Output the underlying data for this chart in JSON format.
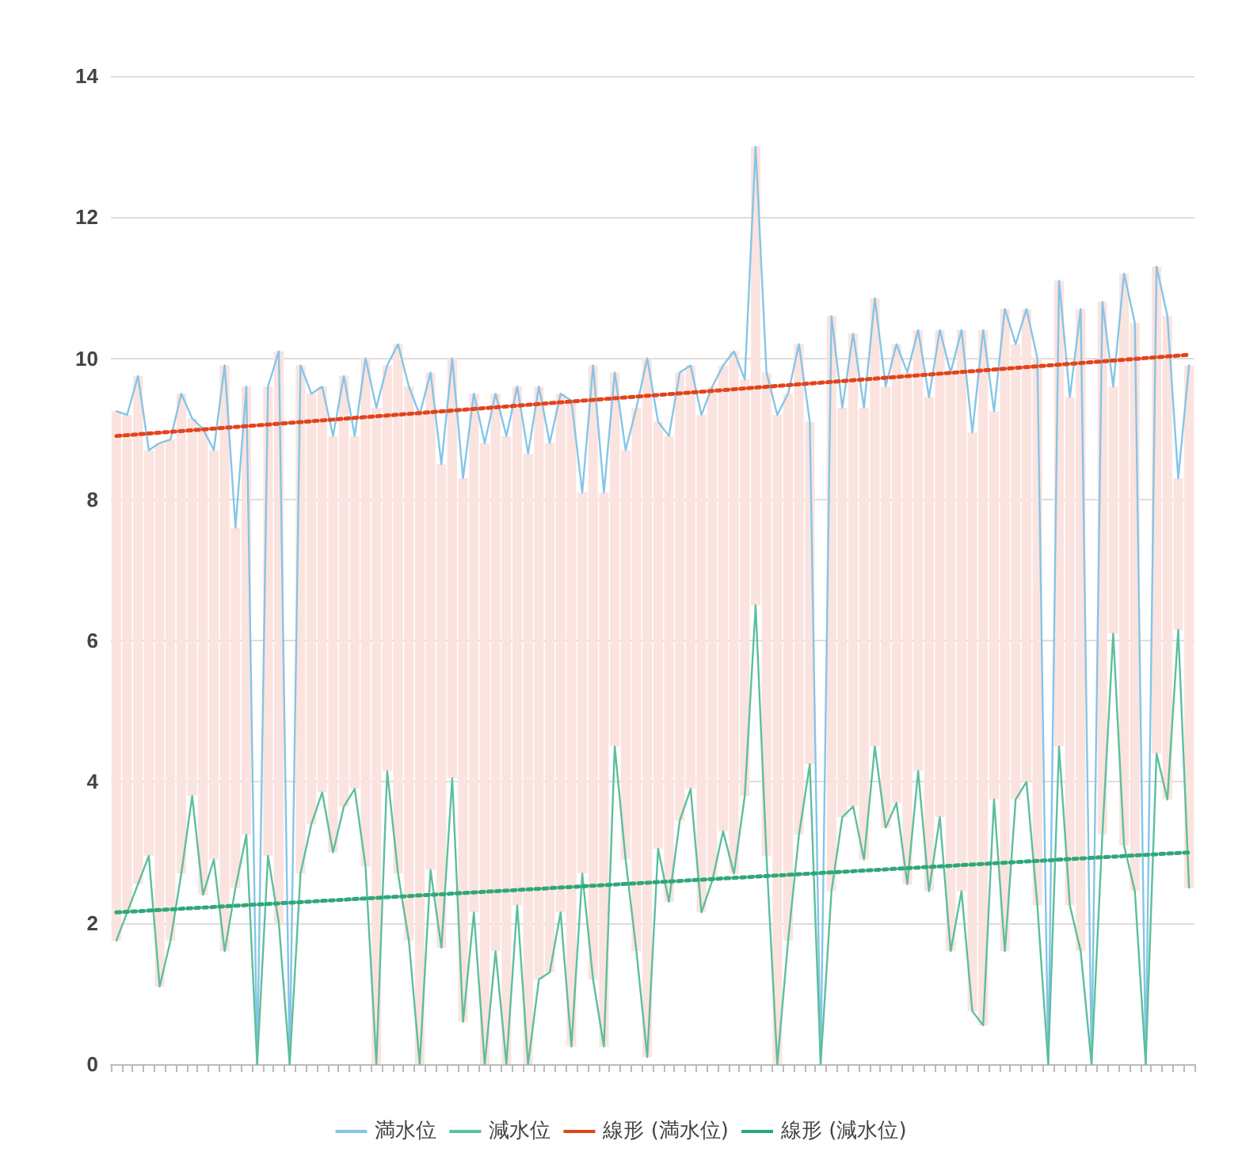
{
  "chart_data": {
    "type": "line",
    "categories": [
      null,
      null,
      null,
      null,
      null,
      null,
      null,
      null,
      null,
      null,
      null,
      null,
      null,
      null,
      null,
      null,
      null,
      null,
      null,
      null,
      null,
      null,
      null,
      null,
      null,
      null,
      null,
      null,
      null,
      null,
      null,
      null,
      null,
      null,
      null,
      null,
      null,
      null,
      null,
      null,
      null,
      null,
      null,
      null,
      null,
      null,
      null,
      null,
      null,
      null,
      null,
      null,
      null,
      null,
      null,
      null,
      null,
      null,
      null,
      null,
      null,
      null,
      null,
      null,
      null,
      null,
      null,
      null,
      null,
      null,
      null,
      null,
      null,
      null,
      null,
      null,
      null,
      null,
      null,
      null,
      null,
      null,
      null,
      null,
      null,
      null,
      null,
      null,
      null,
      null,
      null,
      null,
      null,
      null,
      null,
      null,
      null,
      null,
      null,
      null
    ],
    "series": [
      {
        "name": "満水位",
        "color": "#86c5e6",
        "values": [
          9.25,
          9.2,
          9.75,
          8.7,
          8.8,
          8.85,
          9.5,
          9.15,
          9.0,
          8.7,
          9.9,
          7.6,
          9.6,
          0,
          9.6,
          10.1,
          0,
          9.9,
          9.5,
          9.6,
          8.9,
          9.75,
          8.9,
          10.0,
          9.3,
          9.9,
          10.2,
          9.6,
          9.2,
          9.8,
          8.5,
          10.0,
          8.3,
          9.5,
          8.8,
          9.5,
          8.9,
          9.6,
          8.65,
          9.6,
          8.8,
          9.5,
          9.4,
          8.1,
          9.9,
          8.1,
          9.8,
          8.7,
          9.3,
          10.0,
          9.1,
          8.9,
          9.8,
          9.9,
          9.2,
          9.6,
          9.9,
          10.1,
          9.7,
          13.0,
          9.8,
          9.2,
          9.5,
          10.2,
          9.1,
          0,
          10.6,
          9.3,
          10.35,
          9.3,
          10.85,
          9.6,
          10.2,
          9.8,
          10.4,
          9.45,
          10.4,
          9.8,
          10.4,
          8.95,
          10.4,
          9.25,
          10.7,
          10.2,
          10.7,
          10.0,
          0,
          11.1,
          9.45,
          10.7,
          0,
          10.8,
          9.6,
          11.2,
          10.5,
          0,
          11.3,
          10.6,
          8.3,
          9.9
        ]
      },
      {
        "name": "減水位",
        "color": "#5dbf9c",
        "values": [
          1.75,
          2.15,
          2.55,
          2.95,
          1.1,
          1.75,
          2.7,
          3.8,
          2.4,
          2.9,
          1.6,
          2.5,
          3.25,
          0,
          2.95,
          2.0,
          0,
          2.7,
          3.4,
          3.85,
          3.0,
          3.65,
          3.9,
          2.8,
          0,
          4.15,
          2.7,
          1.75,
          0,
          2.75,
          1.65,
          4.05,
          0.6,
          2.15,
          0,
          1.6,
          0,
          2.25,
          0,
          1.2,
          1.3,
          2.15,
          0.25,
          2.7,
          1.2,
          0.25,
          4.5,
          2.9,
          1.6,
          0.1,
          3.05,
          2.3,
          3.45,
          3.9,
          2.15,
          2.6,
          3.3,
          2.7,
          3.8,
          6.5,
          2.95,
          0,
          1.75,
          3.25,
          4.25,
          0,
          2.45,
          3.5,
          3.65,
          2.9,
          4.5,
          3.35,
          3.7,
          2.55,
          4.15,
          2.45,
          3.5,
          1.6,
          2.45,
          0.75,
          0.55,
          3.75,
          1.6,
          3.75,
          4.0,
          2.25,
          0,
          4.5,
          2.25,
          1.6,
          0,
          3.25,
          6.1,
          3.1,
          2.45,
          0,
          4.4,
          3.75,
          6.15,
          2.5
        ]
      },
      {
        "type": "bar",
        "color": "#fbe3df",
        "base": [
          1.75,
          2.15,
          2.55,
          2.95,
          1.1,
          1.75,
          2.7,
          3.8,
          2.4,
          2.9,
          1.6,
          2.5,
          3.25,
          null,
          2.95,
          2.0,
          null,
          2.7,
          3.4,
          3.85,
          3.0,
          3.65,
          3.9,
          2.8,
          0,
          4.15,
          2.7,
          1.75,
          0,
          2.75,
          1.65,
          4.05,
          0.6,
          2.15,
          0,
          1.6,
          0,
          2.25,
          0,
          1.2,
          1.3,
          2.15,
          0.25,
          2.7,
          1.2,
          0.25,
          4.5,
          2.9,
          1.6,
          0.1,
          3.05,
          2.3,
          3.45,
          3.9,
          2.15,
          2.6,
          3.3,
          2.7,
          3.8,
          6.5,
          2.95,
          0,
          1.75,
          3.25,
          4.25,
          null,
          2.45,
          3.5,
          3.65,
          2.9,
          4.5,
          3.35,
          3.7,
          2.55,
          4.15,
          2.45,
          3.5,
          1.6,
          2.45,
          0.75,
          0.55,
          3.75,
          1.6,
          3.75,
          4.0,
          2.25,
          null,
          4.5,
          2.25,
          1.6,
          null,
          3.25,
          6.1,
          3.1,
          2.45,
          null,
          4.4,
          3.75,
          6.15,
          2.5
        ],
        "values": [
          7.5,
          7.05,
          7.2,
          5.75,
          7.7,
          7.1,
          6.8,
          5.35,
          6.6,
          5.8,
          8.3,
          5.1,
          6.35,
          null,
          6.65,
          8.1,
          null,
          7.2,
          6.1,
          5.75,
          5.9,
          6.1,
          5.0,
          7.2,
          9.3,
          5.75,
          7.5,
          7.85,
          9.2,
          7.05,
          6.85,
          5.95,
          7.7,
          7.35,
          8.8,
          7.9,
          8.9,
          7.35,
          8.65,
          8.4,
          7.5,
          7.35,
          9.15,
          5.4,
          8.7,
          7.85,
          5.3,
          5.8,
          7.7,
          9.9,
          6.05,
          6.6,
          6.35,
          6.0,
          7.05,
          7.0,
          6.6,
          7.4,
          5.9,
          6.5,
          6.85,
          9.2,
          7.75,
          6.95,
          4.85,
          null,
          8.15,
          5.8,
          6.7,
          6.4,
          6.35,
          6.25,
          6.5,
          7.25,
          6.25,
          7.0,
          6.9,
          8.2,
          7.95,
          8.2,
          9.85,
          5.5,
          9.1,
          6.45,
          6.7,
          7.75,
          null,
          6.6,
          7.2,
          9.1,
          null,
          7.55,
          3.5,
          8.1,
          8.05,
          null,
          6.9,
          6.85,
          2.15,
          7.4
        ]
      },
      {
        "name": "線形 (満水位)",
        "color": "#e2441c",
        "line_style": "dotted",
        "values": [
          8.9,
          null,
          null,
          null,
          null,
          null,
          null,
          null,
          null,
          null,
          null,
          null,
          null,
          null,
          null,
          null,
          null,
          null,
          null,
          null,
          null,
          null,
          null,
          null,
          null,
          null,
          null,
          null,
          null,
          null,
          null,
          null,
          null,
          null,
          null,
          null,
          null,
          null,
          null,
          null,
          null,
          null,
          null,
          null,
          null,
          null,
          null,
          null,
          null,
          null,
          null,
          null,
          null,
          null,
          null,
          null,
          null,
          null,
          null,
          null,
          null,
          null,
          null,
          null,
          null,
          null,
          null,
          null,
          null,
          null,
          null,
          null,
          null,
          null,
          null,
          null,
          null,
          null,
          null,
          null,
          null,
          null,
          null,
          null,
          null,
          null,
          null,
          null,
          null,
          null,
          null,
          null,
          null,
          null,
          null,
          null,
          null,
          null,
          null,
          10.05
        ]
      },
      {
        "name": "線形 (減水位)",
        "color": "#2fa878",
        "line_style": "dotted",
        "values": [
          2.15,
          null,
          null,
          null,
          null,
          null,
          null,
          null,
          null,
          null,
          null,
          null,
          null,
          null,
          null,
          null,
          null,
          null,
          null,
          null,
          null,
          null,
          null,
          null,
          null,
          null,
          null,
          null,
          null,
          null,
          null,
          null,
          null,
          null,
          null,
          null,
          null,
          null,
          null,
          null,
          null,
          null,
          null,
          null,
          null,
          null,
          null,
          null,
          null,
          null,
          null,
          null,
          null,
          null,
          null,
          null,
          null,
          null,
          null,
          null,
          null,
          null,
          null,
          null,
          null,
          null,
          null,
          null,
          null,
          null,
          null,
          null,
          null,
          null,
          null,
          null,
          null,
          null,
          null,
          null,
          null,
          null,
          null,
          null,
          null,
          null,
          null,
          null,
          null,
          null,
          null,
          null,
          null,
          null,
          null,
          null,
          null,
          null,
          null,
          3.0
        ]
      }
    ],
    "ylim": [
      0,
      14
    ],
    "yticks": [
      0,
      2,
      4,
      6,
      8,
      10,
      12,
      14
    ],
    "grid": "y",
    "legend": "bottom",
    "marker": "none"
  }
}
